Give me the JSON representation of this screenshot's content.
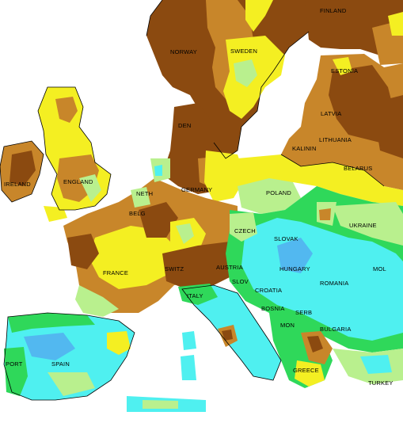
{
  "colors": {
    "sea": "#ffffff",
    "very_dry": "#8b4a10",
    "dry": "#c8862a",
    "slightly_dry": "#f4ef22",
    "near_normal": "#b9f08e",
    "wet": "#2fd85a",
    "very_wet": "#4ff0f0",
    "extreme_wet": "#52b8f0"
  },
  "country_labels": {
    "finland": "FINLAND",
    "norway": "NORWAY",
    "sweden": "SWEDEN",
    "estonia": "ESTONIA",
    "latvia": "LATVIA",
    "lithuania": "LITHUANIA",
    "kalinin": "KALININ",
    "denmark": "DEN",
    "belarus": "BELARUS",
    "ireland": "IRELAND",
    "england": "ENGLAND",
    "netherlands": "NETH",
    "germany": "GERMANY",
    "poland": "POLAND",
    "belgium": "BELG",
    "czech": "CZECH",
    "slovakia": "SLOVAK",
    "ukraine": "UKRAINE",
    "france": "FRANCE",
    "switzerland": "SWITZ",
    "austria": "AUSTRIA",
    "hungary": "HUNGARY",
    "moldova": "MOL",
    "slovenia": "SLOV",
    "romania": "ROMANIA",
    "croatia": "CROATIA",
    "italy": "ITALY",
    "bosnia": "BOSNIA",
    "serbia": "SERB",
    "montenegro": "MON",
    "bulgaria": "BULGARIA",
    "portugal": "PORT",
    "spain": "SPAIN",
    "greece": "GREECE",
    "turkey": "TURKEY"
  }
}
